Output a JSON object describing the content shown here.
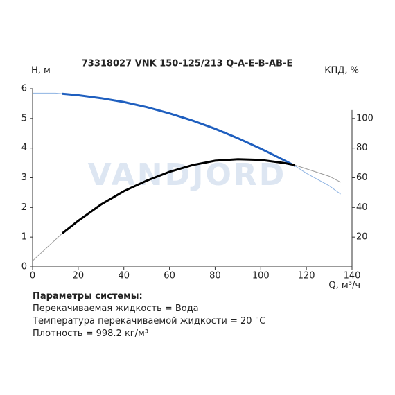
{
  "chart_data": {
    "type": "line",
    "title": "73318027 VNK 150-125/213 Q-A-E-B-AB-E",
    "y_label": "H, м",
    "y2_label": "КПД, %",
    "x_label": "Q, м³/ч",
    "watermark": "VANDJORD",
    "xlim": [
      0,
      140
    ],
    "xticks": [
      0,
      20,
      40,
      60,
      80,
      100,
      120,
      140
    ],
    "ylim": [
      0,
      6
    ],
    "yticks": [
      0,
      1,
      2,
      3,
      4,
      5,
      6
    ],
    "y2lim": [
      0,
      120
    ],
    "y2ticks": [
      20,
      40,
      60,
      80,
      100
    ],
    "series": [
      {
        "color": "#8fb4e3",
        "width": 1,
        "x": [
          0,
          10,
          13,
          20,
          30,
          40,
          50,
          60,
          70,
          80,
          90,
          100,
          110,
          115,
          120,
          130,
          135
        ],
        "values": [
          5.85,
          5.85,
          5.83,
          5.78,
          5.68,
          5.55,
          5.38,
          5.17,
          4.93,
          4.65,
          4.33,
          3.98,
          3.6,
          3.4,
          3.15,
          2.73,
          2.45
        ]
      },
      {
        "color": "#1f5fbf",
        "width": 3,
        "x": [
          13,
          20,
          30,
          40,
          50,
          60,
          70,
          80,
          90,
          100,
          110,
          115
        ],
        "values": [
          5.83,
          5.78,
          5.68,
          5.55,
          5.38,
          5.17,
          4.93,
          4.65,
          4.33,
          3.98,
          3.6,
          3.4
        ]
      },
      {
        "color": "#999999",
        "width": 1,
        "axis": "y2",
        "x": [
          0,
          13,
          20,
          30,
          40,
          50,
          60,
          70,
          80,
          90,
          100,
          110,
          115,
          120,
          130,
          135
        ],
        "values": [
          4,
          22.5,
          31,
          42,
          51,
          58,
          64,
          68.5,
          71.5,
          72.5,
          72,
          70,
          68.5,
          66,
          61,
          57
        ]
      },
      {
        "color": "#000000",
        "width": 3,
        "axis": "y2",
        "x": [
          13,
          20,
          30,
          40,
          50,
          60,
          70,
          80,
          90,
          100,
          110,
          115
        ],
        "values": [
          22.5,
          31,
          42,
          51,
          58,
          64,
          68.5,
          71.5,
          72.5,
          72,
          70,
          68.5
        ]
      }
    ]
  },
  "parameters": {
    "title": "Параметры системы:",
    "lines": [
      "Перекачиваемая жидкость = Вода",
      "Температура перекачиваемой жидкости = 20 °C",
      "Плотность = 998.2 кг/м³"
    ]
  }
}
